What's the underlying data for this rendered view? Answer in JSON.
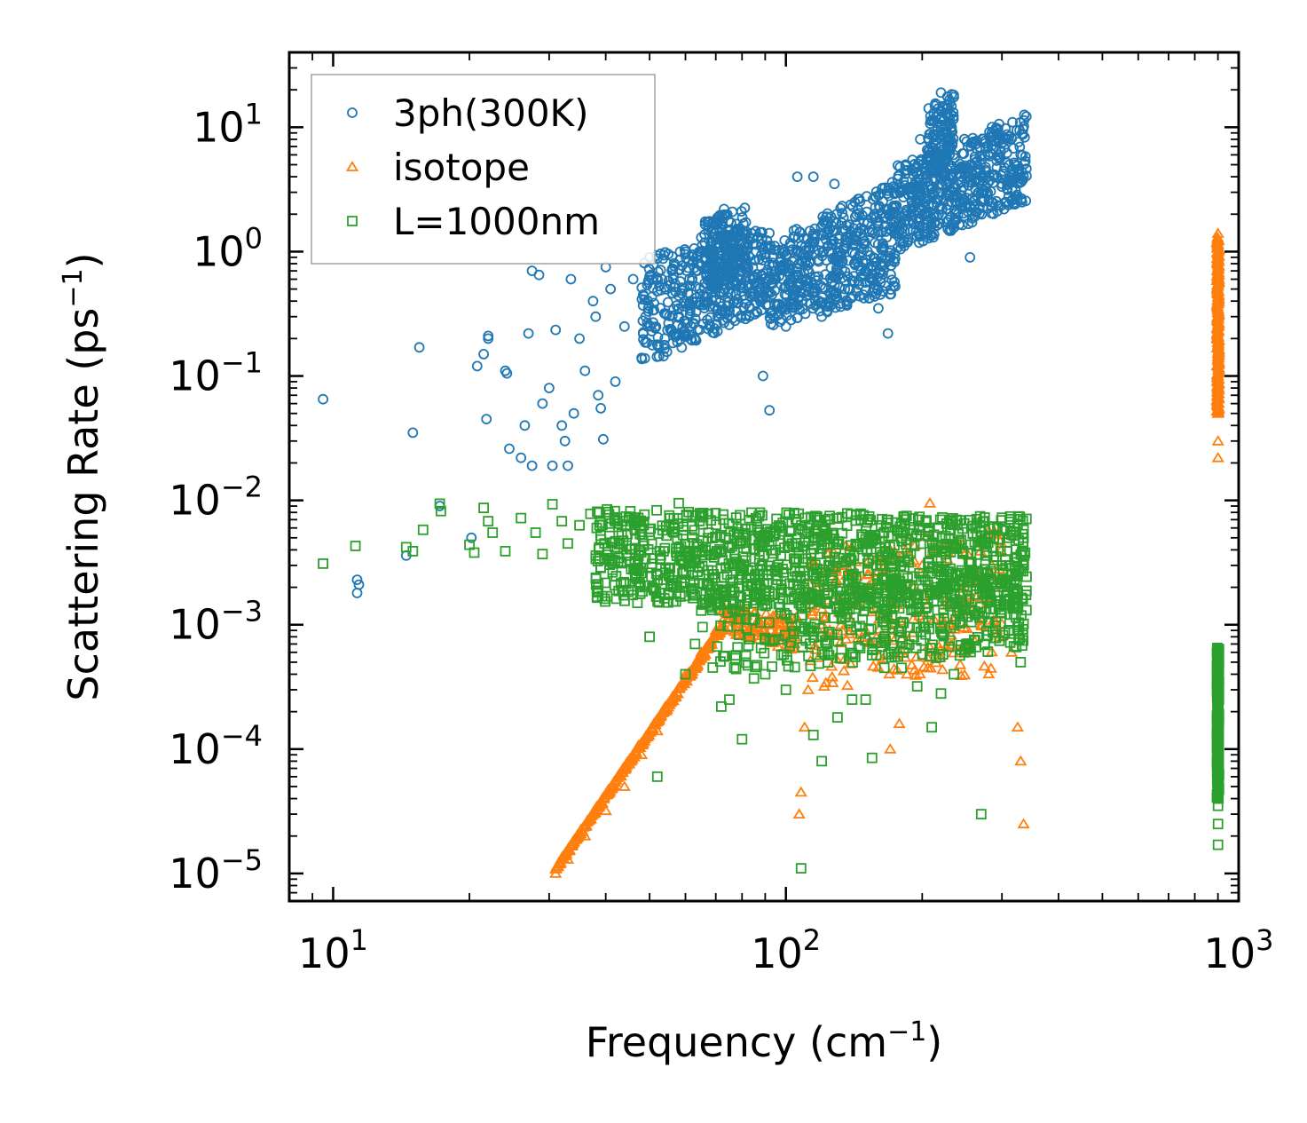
{
  "chart_data": {
    "type": "scatter",
    "title": "",
    "xlabel": "Frequency (cm",
    "xlabel_sup": "−1",
    "xlabel_end": ")",
    "ylabel": "Scattering Rate (ps",
    "ylabel_sup": "−1",
    "ylabel_end": ")",
    "xscale": "log",
    "yscale": "log",
    "xlim": [
      8,
      1000
    ],
    "ylim": [
      6e-06,
      40
    ],
    "xticks": [
      {
        "value": 10,
        "base": "10",
        "exp": "1"
      },
      {
        "value": 100,
        "base": "10",
        "exp": "2"
      },
      {
        "value": 1000,
        "base": "10",
        "exp": "3"
      }
    ],
    "yticks": [
      {
        "value": 1e-05,
        "base": "10",
        "exp": "−5"
      },
      {
        "value": 0.0001,
        "base": "10",
        "exp": "−4"
      },
      {
        "value": 0.001,
        "base": "10",
        "exp": "−3"
      },
      {
        "value": 0.01,
        "base": "10",
        "exp": "−2"
      },
      {
        "value": 0.1,
        "base": "10",
        "exp": "−1"
      },
      {
        "value": 1,
        "base": "10",
        "exp": "0"
      },
      {
        "value": 10,
        "base": "10",
        "exp": "1"
      }
    ],
    "legend_position": "upper-left",
    "series": [
      {
        "name": "3ph(300K)",
        "marker": "circle",
        "color": "#1f77b4",
        "points": [
          [
            9.5,
            0.065
          ],
          [
            11.3,
            0.0023
          ],
          [
            11.3,
            0.0018
          ],
          [
            11.4,
            0.0021
          ],
          [
            14.5,
            0.0036
          ],
          [
            15.0,
            0.035
          ],
          [
            15.5,
            0.17
          ],
          [
            17.2,
            0.009
          ],
          [
            20.2,
            0.005
          ],
          [
            20.8,
            0.12
          ],
          [
            21.5,
            0.15
          ],
          [
            21.8,
            0.045
          ],
          [
            22.0,
            0.2
          ],
          [
            22.0,
            0.21
          ],
          [
            24.0,
            0.11
          ],
          [
            24.2,
            0.105
          ],
          [
            24.5,
            0.026
          ],
          [
            26.0,
            0.022
          ],
          [
            26.5,
            0.04
          ],
          [
            27.0,
            0.22
          ],
          [
            27.5,
            0.019
          ],
          [
            27.5,
            0.7
          ],
          [
            28.5,
            0.65
          ],
          [
            29.0,
            0.06
          ],
          [
            30.0,
            0.08
          ],
          [
            30.5,
            0.019
          ],
          [
            31.0,
            0.235
          ],
          [
            32.0,
            0.04
          ],
          [
            32.5,
            0.03
          ],
          [
            33.0,
            0.019
          ],
          [
            33.5,
            0.6
          ],
          [
            34.0,
            0.05
          ],
          [
            35.0,
            0.2
          ],
          [
            36.0,
            0.11
          ],
          [
            37.5,
            0.4
          ],
          [
            38.0,
            0.3
          ],
          [
            38.5,
            0.07
          ],
          [
            39.0,
            0.055
          ],
          [
            39.5,
            0.031
          ],
          [
            40.0,
            0.75
          ],
          [
            41.0,
            0.5
          ],
          [
            42.0,
            0.09
          ],
          [
            44.0,
            0.25
          ],
          [
            46.0,
            0.6
          ],
          [
            48.0,
            0.14
          ],
          [
            49.0,
            0.3
          ],
          [
            50.0,
            0.9
          ],
          [
            52.0,
            0.48
          ],
          [
            54.0,
            0.2
          ],
          [
            56.0,
            0.7
          ],
          [
            58.0,
            0.35
          ],
          [
            60.0,
            1.0
          ],
          [
            63.0,
            0.2
          ],
          [
            65.0,
            1.3
          ],
          [
            68.0,
            0.6
          ],
          [
            71.0,
            1.8
          ],
          [
            73.0,
            2.2
          ],
          [
            75.0,
            1.5
          ],
          [
            77.0,
            0.4
          ],
          [
            80.0,
            1.2
          ],
          [
            83.0,
            0.3
          ],
          [
            86.0,
            1.0
          ],
          [
            89.0,
            0.1
          ],
          [
            92.0,
            0.053
          ],
          [
            95.0,
            0.6
          ],
          [
            100.0,
            0.25
          ],
          [
            106.0,
            4.0
          ],
          [
            110.0,
            0.9
          ],
          [
            115.0,
            4.0
          ],
          [
            120.0,
            0.3
          ],
          [
            128.0,
            3.5
          ],
          [
            135.0,
            0.5
          ],
          [
            142.0,
            2.5
          ],
          [
            150.0,
            0.8
          ],
          [
            155.0,
            1.5
          ],
          [
            160.0,
            0.35
          ],
          [
            168.0,
            0.22
          ],
          [
            175.0,
            2.0
          ],
          [
            182.0,
            1.2
          ],
          [
            190.0,
            3.0
          ],
          [
            198.0,
            8.0
          ],
          [
            205.0,
            5.0
          ],
          [
            212.0,
            13.0
          ],
          [
            220.0,
            19.0
          ],
          [
            230.0,
            12.0
          ],
          [
            240.0,
            2.0
          ],
          [
            255.0,
            0.9
          ],
          [
            270.0,
            3.0
          ],
          [
            285.0,
            9.0
          ],
          [
            300.0,
            3.5
          ],
          [
            310.0,
            8.0
          ],
          [
            320.0,
            5.0
          ],
          [
            335.0,
            4.0
          ]
        ],
        "bands": [
          {
            "x": [
              48,
              92
            ],
            "lo": [
              0.12,
              0.35
            ],
            "hi": [
              0.9,
              1.6
            ],
            "n": 420
          },
          {
            "x": [
              66,
              82
            ],
            "lo": [
              0.5,
              0.6
            ],
            "hi": [
              1.8,
              2.3
            ],
            "n": 160
          },
          {
            "x": [
              92,
              175
            ],
            "lo": [
              0.25,
              0.45
            ],
            "hi": [
              1.2,
              3.8
            ],
            "n": 520
          },
          {
            "x": [
              175,
              340
            ],
            "lo": [
              1.0,
              2.5
            ],
            "hi": [
              5.0,
              13.0
            ],
            "n": 520
          },
          {
            "x": [
              205,
              235
            ],
            "lo": [
              4.0,
              6.0
            ],
            "hi": [
              14.0,
              19.5
            ],
            "n": 120
          }
        ]
      },
      {
        "name": "isotope",
        "marker": "triangle",
        "color": "#ff7f0e",
        "points": [
          [
            31,
            1e-05
          ],
          [
            33,
            1.3e-05
          ],
          [
            36,
            2e-05
          ],
          [
            40,
            3.2e-05
          ],
          [
            44,
            5e-05
          ],
          [
            48,
            9e-05
          ],
          [
            52,
            0.00014
          ],
          [
            56,
            0.00025
          ],
          [
            60,
            0.0004
          ],
          [
            65,
            0.0006
          ],
          [
            70,
            0.0009
          ],
          [
            80,
            0.0012
          ],
          [
            95,
            0.0012
          ],
          [
            105,
            0.0008
          ],
          [
            107,
            3e-05
          ],
          [
            108,
            4.5e-05
          ],
          [
            110,
            0.00015
          ],
          [
            112,
            0.0003
          ],
          [
            120,
            0.0015
          ],
          [
            150,
            0.0009
          ],
          [
            170,
            0.0001
          ],
          [
            178,
            0.00016
          ],
          [
            185,
            0.0004
          ],
          [
            200,
            0.003
          ],
          [
            208,
            0.0095
          ],
          [
            210,
            0.005
          ],
          [
            230,
            0.001
          ],
          [
            250,
            0.0006
          ],
          [
            270,
            0.001
          ],
          [
            285,
            0.003
          ],
          [
            300,
            0.002
          ],
          [
            315,
            0.0006
          ],
          [
            325,
            0.00015
          ],
          [
            330,
            8e-05
          ],
          [
            335,
            2.5e-05
          ],
          [
            900,
            0.022
          ],
          [
            900,
            0.03
          ],
          [
            900,
            0.05
          ],
          [
            900,
            0.1
          ],
          [
            900,
            0.3
          ],
          [
            900,
            0.6
          ],
          [
            900,
            1.0
          ],
          [
            900,
            1.4
          ]
        ],
        "bands": [
          {
            "x": [
              31,
              72
            ],
            "lo": [
              1e-05,
              0.0008
            ],
            "hi": [
              1.2e-05,
              0.0011
            ],
            "n": 260,
            "mode": "line"
          },
          {
            "x": [
              72,
              106
            ],
            "lo": [
              0.0009,
              0.0006
            ],
            "hi": [
              0.0014,
              0.0012
            ],
            "n": 120
          },
          {
            "x": [
              112,
              300
            ],
            "lo": [
              0.0003,
              0.0004
            ],
            "hi": [
              0.004,
              0.006
            ],
            "n": 240
          },
          {
            "x": [
              895,
              905
            ],
            "lo": [
              0.05,
              0.05
            ],
            "hi": [
              1.3,
              1.3
            ],
            "n": 160,
            "mode": "vertical"
          }
        ]
      },
      {
        "name": "L=1000nm",
        "marker": "square",
        "color": "#2ca02c",
        "points": [
          [
            9.5,
            0.0031
          ],
          [
            11.2,
            0.0043
          ],
          [
            14.5,
            0.0042
          ],
          [
            15.0,
            0.0039
          ],
          [
            15.8,
            0.0058
          ],
          [
            17.2,
            0.0094
          ],
          [
            17.3,
            0.0082
          ],
          [
            20.0,
            0.0044
          ],
          [
            20.5,
            0.0038
          ],
          [
            21.5,
            0.0087
          ],
          [
            22.0,
            0.0068
          ],
          [
            22.5,
            0.0055
          ],
          [
            24.0,
            0.0039
          ],
          [
            26.0,
            0.0072
          ],
          [
            28.0,
            0.0055
          ],
          [
            29.0,
            0.0037
          ],
          [
            30.5,
            0.0093
          ],
          [
            32.0,
            0.0068
          ],
          [
            33.0,
            0.0045
          ],
          [
            35.0,
            0.0063
          ],
          [
            37.0,
            0.0078
          ],
          [
            39.0,
            0.0029
          ],
          [
            41.0,
            0.0065
          ],
          [
            43.0,
            0.0045
          ],
          [
            45.0,
            0.0072
          ],
          [
            47.0,
            0.0015
          ],
          [
            50.0,
            0.0008
          ],
          [
            52.0,
            6e-05
          ],
          [
            55.0,
            0.0018
          ],
          [
            58.0,
            0.0095
          ],
          [
            60.0,
            0.0004
          ],
          [
            63.0,
            0.0007
          ],
          [
            65.0,
            0.0013
          ],
          [
            70.0,
            0.0018
          ],
          [
            72.0,
            0.00022
          ],
          [
            75.0,
            0.00025
          ],
          [
            80.0,
            0.00012
          ],
          [
            85.0,
            0.00037
          ],
          [
            90.0,
            0.0004
          ],
          [
            95.0,
            0.0025
          ],
          [
            100.0,
            0.0003
          ],
          [
            108.0,
            1.1e-05
          ],
          [
            115.0,
            0.00013
          ],
          [
            120.0,
            8e-05
          ],
          [
            130.0,
            0.00018
          ],
          [
            140.0,
            0.00025
          ],
          [
            150.0,
            0.00025
          ],
          [
            155.0,
            8.5e-05
          ],
          [
            165.0,
            0.00045
          ],
          [
            180.0,
            0.00045
          ],
          [
            195.0,
            0.00032
          ],
          [
            210.0,
            0.00015
          ],
          [
            220.0,
            0.00028
          ],
          [
            235.0,
            0.0004
          ],
          [
            250.0,
            0.0007
          ],
          [
            270.0,
            3e-05
          ],
          [
            300.0,
            0.003
          ],
          [
            320.0,
            0.0018
          ],
          [
            330.0,
            0.0005
          ],
          [
            335.0,
            0.005
          ],
          [
            900,
            1.7e-05
          ],
          [
            900,
            2.5e-05
          ],
          [
            900,
            3.5e-05
          ],
          [
            900,
            0.0001
          ],
          [
            900,
            0.0003
          ],
          [
            900,
            0.0006
          ]
        ],
        "bands": [
          {
            "x": [
              38,
              340
            ],
            "lo": [
              0.0015,
              0.0012
            ],
            "hi": [
              0.0085,
              0.0075
            ],
            "n": 1100
          },
          {
            "x": [
              65,
              340
            ],
            "lo": [
              0.0004,
              0.0006
            ],
            "hi": [
              0.002,
              0.003
            ],
            "n": 420
          },
          {
            "x": [
              895,
              905
            ],
            "lo": [
              4e-05,
              4e-05
            ],
            "hi": [
              0.00065,
              0.00065
            ],
            "n": 140,
            "mode": "vertical"
          }
        ]
      }
    ]
  }
}
